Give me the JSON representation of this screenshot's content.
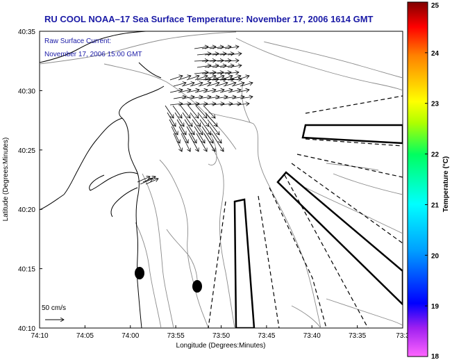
{
  "figure": {
    "title": "RU COOL  NOAA–17  Sea Surface Temperature:  November 17, 2006 1614 GMT",
    "overlay_line1": "Raw Surface Current:",
    "overlay_line2": "November 17, 2006 15:00 GMT",
    "scale_label": "50 cm/s",
    "xlabel": "Longitude (Degrees:Minutes)",
    "ylabel": "Latitude (Degrees:Minutes)",
    "colorbar_label": "Temperature (°C)",
    "title_color": "#1a1aa6"
  },
  "chart_data": {
    "type": "map",
    "x_ticks": [
      "74:10",
      "74:05",
      "74:00",
      "73:55",
      "73:50",
      "73:45",
      "73:40",
      "73:35",
      "73:3"
    ],
    "y_ticks": [
      "40:35",
      "40:30",
      "40:25",
      "40:20",
      "40:15",
      "40:10"
    ],
    "colorbar": {
      "min": 18,
      "max": 25,
      "ticks": [
        "25",
        "24",
        "23",
        "22",
        "21",
        "20",
        "19",
        "18"
      ],
      "colormap": [
        "#ff66ff",
        "#0000ff",
        "#00ffff",
        "#00ff00",
        "#ffff00",
        "#ff8000",
        "#ff0000",
        "#800000"
      ]
    },
    "reference_vector_cm_s": 50
  }
}
